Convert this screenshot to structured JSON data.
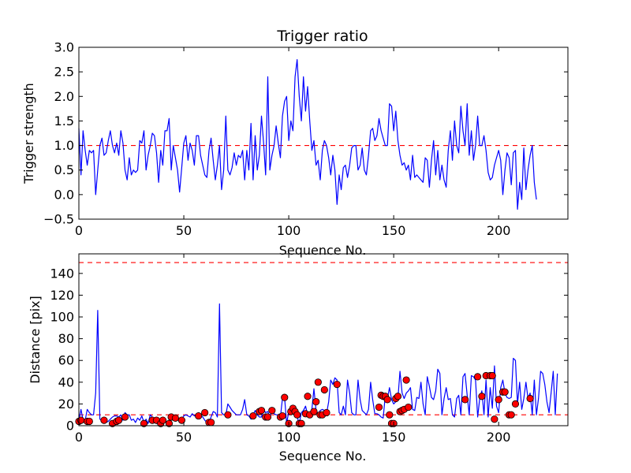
{
  "chart_data": [
    {
      "type": "line",
      "title": "Trigger ratio",
      "xlabel": "Sequence No.",
      "ylabel": "Trigger strength",
      "xlim": [
        0,
        233
      ],
      "ylim": [
        -0.5,
        3.0
      ],
      "xticks": [
        "0",
        "50",
        "100",
        "150",
        "200"
      ],
      "xtick_values": [
        0,
        50,
        100,
        150,
        200
      ],
      "yticks": [
        "−0.5",
        "0.0",
        "0.5",
        "1.0",
        "1.5",
        "2.0",
        "2.5",
        "3.0"
      ],
      "ytick_values": [
        -0.5,
        0.0,
        0.5,
        1.0,
        1.5,
        2.0,
        2.5,
        3.0
      ],
      "line_color": "#0000ff",
      "threshold_color": "#ff0000",
      "thresholds": [
        1.0
      ],
      "series": [
        {
          "name": "trigger strength",
          "values": [
            1.35,
            0.4,
            1.3,
            0.9,
            0.6,
            0.9,
            0.85,
            0.9,
            0.0,
            0.5,
            1.0,
            1.15,
            0.8,
            0.85,
            1.1,
            1.3,
            1.0,
            0.85,
            1.05,
            0.8,
            1.3,
            1.05,
            0.5,
            0.3,
            0.75,
            0.4,
            0.5,
            0.45,
            0.5,
            1.1,
            1.05,
            1.3,
            0.5,
            0.8,
            1.0,
            1.25,
            1.2,
            0.85,
            0.25,
            0.9,
            0.6,
            1.3,
            1.3,
            1.55,
            0.5,
            1.0,
            0.75,
            0.5,
            0.05,
            0.55,
            1.05,
            1.2,
            0.7,
            1.05,
            0.9,
            0.6,
            1.2,
            1.2,
            0.8,
            0.6,
            0.4,
            0.35,
            0.9,
            1.15,
            0.7,
            0.3,
            0.6,
            1.0,
            0.1,
            0.5,
            1.6,
            0.5,
            0.4,
            0.55,
            0.85,
            0.6,
            0.8,
            0.75,
            0.9,
            0.3,
            0.9,
            0.5,
            1.45,
            0.3,
            1.2,
            0.5,
            0.8,
            1.6,
            1.05,
            0.4,
            2.4,
            0.5,
            0.8,
            1.0,
            1.4,
            1.05,
            0.75,
            1.6,
            1.9,
            2.0,
            1.1,
            1.5,
            1.3,
            2.4,
            2.75,
            2.0,
            1.5,
            2.4,
            1.7,
            2.2,
            1.5,
            0.9,
            1.1,
            0.6,
            0.7,
            0.3,
            0.9,
            1.1,
            1.0,
            0.75,
            0.4,
            0.8,
            0.5,
            -0.2,
            0.4,
            0.1,
            0.55,
            0.6,
            0.35,
            0.6,
            0.95,
            1.0,
            1.0,
            0.5,
            0.6,
            0.95,
            0.5,
            0.4,
            0.8,
            1.3,
            1.35,
            1.1,
            1.2,
            1.55,
            1.3,
            1.15,
            1.0,
            1.0,
            1.85,
            1.8,
            1.3,
            1.7,
            1.1,
            0.8,
            0.6,
            0.65,
            0.5,
            0.6,
            0.3,
            0.8,
            0.35,
            0.4,
            0.35,
            0.3,
            0.25,
            0.75,
            0.7,
            0.15,
            0.7,
            1.1,
            0.4,
            0.9,
            0.3,
            0.6,
            0.3,
            0.15,
            0.9,
            1.3,
            0.7,
            1.5,
            1.0,
            0.85,
            1.8,
            1.3,
            1.0,
            1.85,
            0.8,
            1.3,
            0.7,
            1.0,
            1.6,
            1.0,
            1.0,
            1.2,
            0.9,
            0.45,
            0.3,
            0.35,
            0.6,
            0.75,
            0.9,
            0.7,
            0.0,
            0.5,
            0.85,
            0.75,
            0.2,
            0.85,
            0.9,
            -0.3,
            0.25,
            -0.1,
            0.95,
            0.1,
            0.5,
            0.8,
            1.0,
            0.25,
            -0.1
          ]
        }
      ]
    },
    {
      "type": "line",
      "title": "",
      "xlabel": "Sequence No.",
      "ylabel": "Distance [pix]",
      "xlim": [
        0,
        233
      ],
      "ylim": [
        0,
        158
      ],
      "xticks": [
        "0",
        "50",
        "100",
        "150",
        "200"
      ],
      "xtick_values": [
        0,
        50,
        100,
        150,
        200
      ],
      "yticks": [
        "0",
        "20",
        "40",
        "60",
        "80",
        "100",
        "120",
        "140"
      ],
      "ytick_values": [
        0,
        20,
        40,
        60,
        80,
        100,
        120,
        140
      ],
      "line_color": "#0000ff",
      "marker_color": "#ff0000",
      "threshold_color": "#ff0000",
      "thresholds": [
        10,
        150
      ],
      "series": [
        {
          "name": "distance",
          "values": [
            5,
            15,
            5,
            5,
            15,
            12,
            10,
            10,
            30,
            106,
            6,
            5,
            6,
            3,
            4,
            6,
            8,
            9,
            9,
            8,
            10,
            5,
            12,
            10,
            10,
            5,
            6,
            3,
            7,
            5,
            9,
            3,
            6,
            2,
            10,
            8,
            4,
            2,
            3,
            5,
            3,
            3,
            4,
            5,
            8,
            7,
            8,
            6,
            4,
            6,
            9,
            10,
            9,
            8,
            11,
            9,
            10,
            12,
            10,
            8,
            5,
            3,
            3,
            8,
            13,
            12,
            8,
            112,
            12,
            10,
            10,
            20,
            17,
            14,
            12,
            10,
            10,
            10,
            15,
            24,
            10,
            9,
            6,
            10,
            14,
            10,
            8,
            8,
            15,
            12,
            13,
            8,
            14,
            11,
            10,
            10,
            8,
            25,
            26,
            2,
            13,
            12,
            16,
            14,
            8,
            2,
            12,
            14,
            18,
            10,
            12,
            15,
            34,
            14,
            11,
            14,
            15,
            14,
            11,
            22,
            42,
            38,
            44,
            42,
            12,
            10,
            18,
            10,
            42,
            30,
            12,
            10,
            10,
            42,
            24,
            14,
            12,
            10,
            15,
            40,
            24,
            11,
            11,
            10,
            8,
            7,
            28,
            25,
            35,
            24,
            20,
            22,
            25,
            50,
            30,
            25,
            30,
            32,
            35,
            15,
            14,
            26,
            25,
            40,
            20,
            10,
            45,
            36,
            26,
            24,
            32,
            52,
            48,
            10,
            25,
            35,
            24,
            25,
            10,
            8,
            25,
            28,
            10,
            45,
            48,
            28,
            10,
            46,
            45,
            42,
            8,
            25,
            32,
            10,
            42,
            8,
            35,
            16,
            55,
            18,
            12,
            35,
            42,
            30,
            26,
            25,
            26,
            62,
            60,
            20,
            40,
            15,
            25,
            40,
            25,
            30,
            10,
            42,
            10,
            25,
            50,
            48,
            38,
            22,
            12,
            30,
            50,
            10,
            48
          ]
        },
        {
          "name": "markers",
          "points": [
            [
              0,
              4
            ],
            [
              1,
              5
            ],
            [
              4,
              4
            ],
            [
              5,
              4
            ],
            [
              12,
              5
            ],
            [
              16,
              2
            ],
            [
              18,
              4
            ],
            [
              19,
              5
            ],
            [
              22,
              8
            ],
            [
              31,
              2
            ],
            [
              35,
              5
            ],
            [
              37,
              5
            ],
            [
              39,
              2
            ],
            [
              40,
              5
            ],
            [
              43,
              2
            ],
            [
              44,
              8
            ],
            [
              46,
              7
            ],
            [
              49,
              5
            ],
            [
              57,
              9
            ],
            [
              60,
              12
            ],
            [
              62,
              3
            ],
            [
              63,
              3
            ],
            [
              71,
              10
            ],
            [
              83,
              9
            ],
            [
              86,
              13
            ],
            [
              87,
              14
            ],
            [
              89,
              8
            ],
            [
              90,
              8
            ],
            [
              92,
              14
            ],
            [
              96,
              8
            ],
            [
              97,
              9
            ],
            [
              98,
              26
            ],
            [
              100,
              2
            ],
            [
              101,
              13
            ],
            [
              102,
              16
            ],
            [
              103,
              13
            ],
            [
              104,
              10
            ],
            [
              105,
              2
            ],
            [
              106,
              2
            ],
            [
              108,
              11
            ],
            [
              109,
              27
            ],
            [
              110,
              10
            ],
            [
              112,
              13
            ],
            [
              113,
              22
            ],
            [
              114,
              40
            ],
            [
              115,
              10
            ],
            [
              116,
              10
            ],
            [
              117,
              33
            ],
            [
              118,
              12
            ],
            [
              123,
              38
            ],
            [
              143,
              17
            ],
            [
              144,
              28
            ],
            [
              145,
              27
            ],
            [
              146,
              27
            ],
            [
              147,
              24
            ],
            [
              148,
              10
            ],
            [
              149,
              2
            ],
            [
              150,
              2
            ],
            [
              151,
              25
            ],
            [
              152,
              27
            ],
            [
              153,
              13
            ],
            [
              154,
              14
            ],
            [
              155,
              15
            ],
            [
              156,
              42
            ],
            [
              157,
              17
            ],
            [
              184,
              24
            ],
            [
              190,
              45
            ],
            [
              192,
              27
            ],
            [
              194,
              46
            ],
            [
              196,
              46
            ],
            [
              197,
              46
            ],
            [
              198,
              6
            ],
            [
              200,
              24
            ],
            [
              202,
              31
            ],
            [
              203,
              31
            ],
            [
              205,
              10
            ],
            [
              206,
              10
            ],
            [
              208,
              20
            ],
            [
              215,
              25
            ]
          ]
        }
      ]
    }
  ]
}
